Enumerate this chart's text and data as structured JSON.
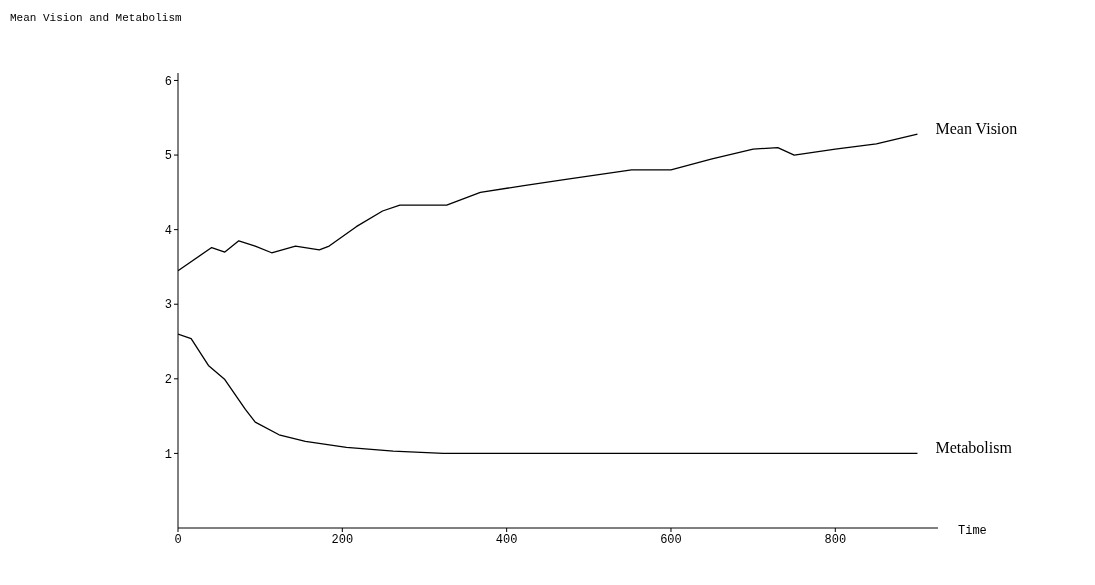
{
  "chart_data": {
    "type": "line",
    "title": "Mean Vision and Metabolism",
    "xlabel": "Time",
    "xlim": [
      0,
      925
    ],
    "xticks": [
      0,
      200,
      400,
      600,
      800
    ],
    "ylim": [
      0,
      6.1
    ],
    "yticks": [
      1,
      2,
      3,
      4,
      5,
      6
    ],
    "grid": false,
    "marker": "none",
    "line_style": "solid",
    "series": [
      {
        "name": "Mean Vision",
        "color": "#000000",
        "x": [
          0,
          41,
          57,
          74,
          94,
          114,
          143,
          172,
          184,
          217,
          249,
          270,
          327,
          368,
          421,
          470,
          552,
          600,
          650,
          700,
          730,
          750,
          800,
          850,
          900
        ],
        "values": [
          3.45,
          3.76,
          3.7,
          3.85,
          3.78,
          3.69,
          3.78,
          3.73,
          3.78,
          4.04,
          4.25,
          4.33,
          4.33,
          4.5,
          4.59,
          4.67,
          4.8,
          4.8,
          4.95,
          5.08,
          5.1,
          5.0,
          5.08,
          5.15,
          5.28
        ]
      },
      {
        "name": "Metabolism",
        "color": "#000000",
        "x": [
          0,
          16,
          37,
          57,
          82,
          94,
          123,
          155,
          205,
          262,
          323,
          900
        ],
        "values": [
          2.6,
          2.54,
          2.18,
          1.99,
          1.59,
          1.42,
          1.25,
          1.16,
          1.08,
          1.03,
          1.0,
          1.0
        ]
      }
    ]
  }
}
